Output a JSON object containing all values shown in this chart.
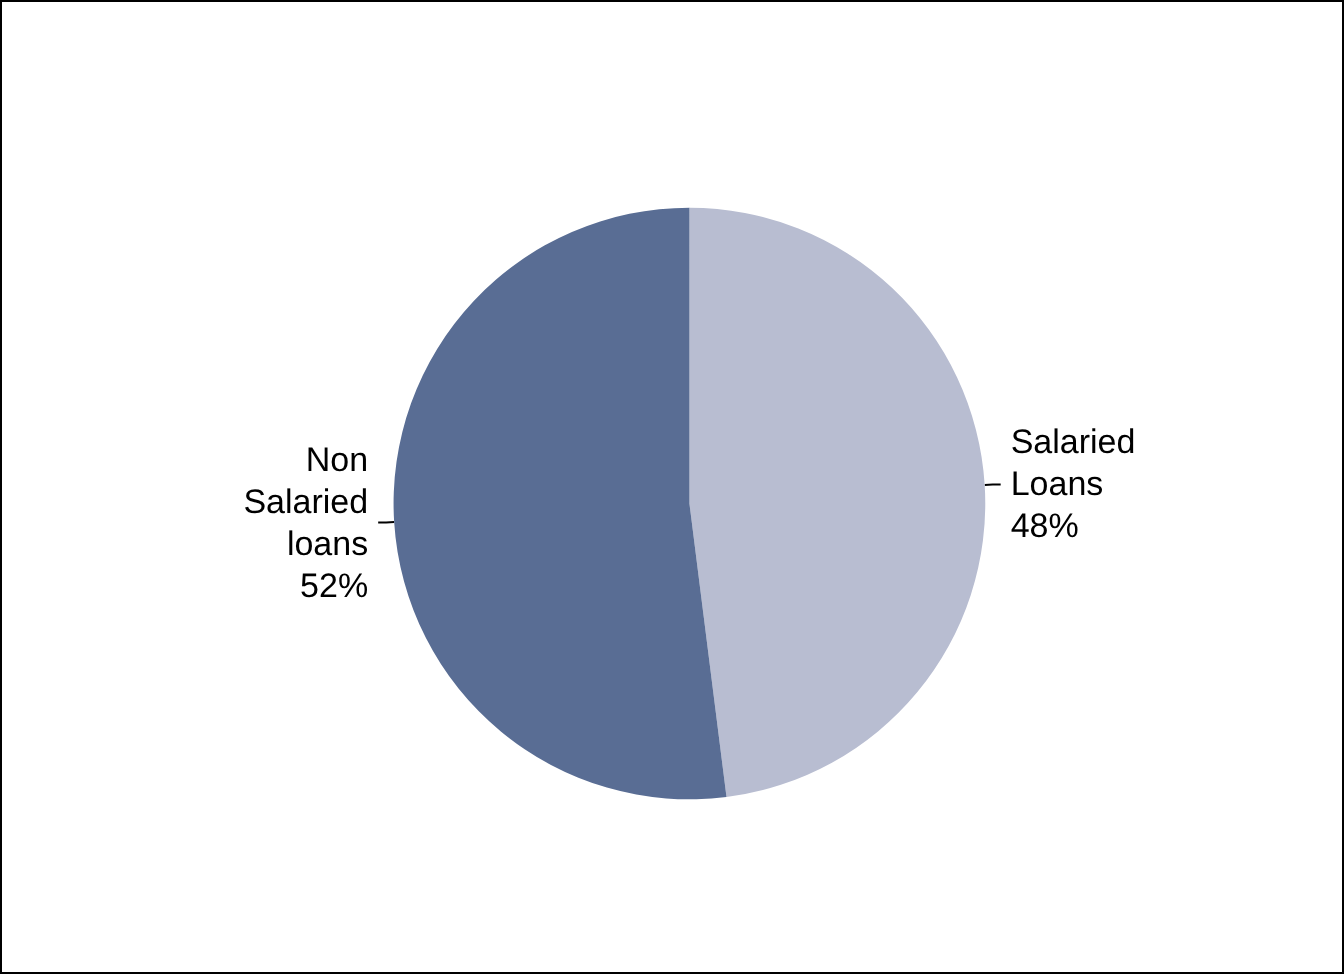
{
  "chart_data": {
    "type": "pie",
    "categories": [
      "Salaried Loans",
      "Non Salaried loans"
    ],
    "values": [
      48,
      52
    ],
    "value_labels": [
      "48%",
      "52%"
    ],
    "colors": [
      "#b8bdd1",
      "#596d94"
    ]
  }
}
